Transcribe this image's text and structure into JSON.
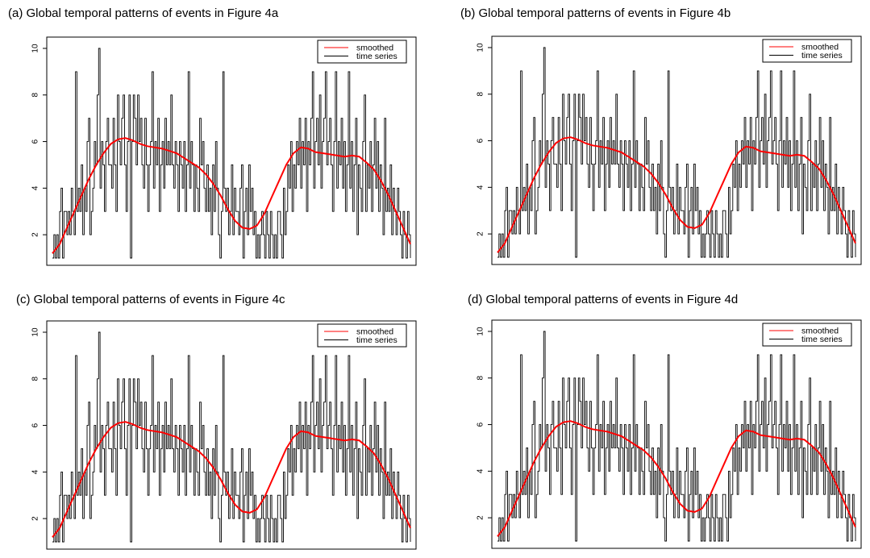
{
  "colors": {
    "smoothed": "#ff0000",
    "series": "#000000",
    "frame": "#000000",
    "background": "#ffffff"
  },
  "chart_data": [
    {
      "type": "line",
      "title": "(a) Global temporal patterns of events in  Figure  4a",
      "ylim": [
        1,
        10
      ],
      "yticks": [
        "2",
        "4",
        "6",
        "8",
        "10"
      ],
      "legend": {
        "position": "top-right",
        "entries": [
          "smoothed",
          "time series"
        ]
      },
      "series": [
        {
          "name": "smoothed",
          "color": "#ff0000"
        },
        {
          "name": "time series",
          "color": "#000000"
        }
      ]
    },
    {
      "type": "line",
      "title": "(b) Global temporal patterns of events in  Figure  4b",
      "ylim": [
        1,
        10
      ],
      "yticks": [
        "2",
        "4",
        "6",
        "8",
        "10"
      ],
      "legend": {
        "position": "top-right",
        "entries": [
          "smoothed",
          "time series"
        ]
      },
      "series": [
        {
          "name": "smoothed",
          "color": "#ff0000"
        },
        {
          "name": "time series",
          "color": "#000000"
        }
      ]
    },
    {
      "type": "line",
      "title": "(c) Global temporal patterns of events in  Figure  4c",
      "ylim": [
        1,
        10
      ],
      "yticks": [
        "2",
        "4",
        "6",
        "8",
        "10"
      ],
      "legend": {
        "position": "top-right",
        "entries": [
          "smoothed",
          "time series"
        ]
      },
      "series": [
        {
          "name": "smoothed",
          "color": "#ff0000"
        },
        {
          "name": "time series",
          "color": "#000000"
        }
      ]
    },
    {
      "type": "line",
      "title": "(d) Global temporal patterns of events in  Figure  4d",
      "ylim": [
        1,
        10
      ],
      "yticks": [
        "2",
        "4",
        "6",
        "8",
        "10"
      ],
      "legend": {
        "position": "top-right",
        "entries": [
          "smoothed",
          "time series"
        ]
      },
      "series": [
        {
          "name": "smoothed",
          "color": "#ff0000"
        },
        {
          "name": "time series",
          "color": "#000000"
        }
      ]
    }
  ],
  "smoothed_curve": [
    1.2,
    1.6,
    2.3,
    3.0,
    3.7,
    4.4,
    5.0,
    5.5,
    5.9,
    6.1,
    6.15,
    6.05,
    5.9,
    5.8,
    5.75,
    5.7,
    5.6,
    5.5,
    5.3,
    5.1,
    4.9,
    4.6,
    4.2,
    3.7,
    3.1,
    2.6,
    2.3,
    2.25,
    2.4,
    2.9,
    3.6,
    4.3,
    5.0,
    5.5,
    5.75,
    5.7,
    5.55,
    5.5,
    5.45,
    5.4,
    5.35,
    5.4,
    5.35,
    5.1,
    4.8,
    4.3,
    3.7,
    3.0,
    2.3,
    1.6
  ],
  "time_series": [
    1,
    2,
    1,
    2,
    1,
    3,
    4,
    1,
    3,
    3,
    2,
    3,
    2,
    4,
    3,
    2,
    9,
    3,
    4,
    3,
    5,
    2,
    4,
    3,
    6,
    7,
    2,
    3,
    4,
    6,
    5,
    8,
    10,
    4,
    6,
    5,
    3,
    6,
    7,
    5,
    5,
    4,
    7,
    5,
    3,
    8,
    6,
    5,
    7,
    8,
    5,
    3,
    6,
    8,
    1,
    6,
    8,
    7,
    5,
    8,
    6,
    7,
    5,
    4,
    7,
    5,
    3,
    5,
    6,
    9,
    4,
    6,
    5,
    7,
    3,
    5,
    6,
    4,
    7,
    5,
    6,
    5,
    8,
    5,
    4,
    6,
    5,
    3,
    6,
    5,
    4,
    6,
    3,
    5,
    9,
    4,
    6,
    5,
    3,
    5,
    4,
    3,
    7,
    5,
    6,
    4,
    3,
    5,
    3,
    4,
    2,
    5,
    3,
    6,
    4,
    2,
    1,
    3,
    9,
    4,
    3,
    4,
    2,
    3,
    5,
    2,
    4,
    3,
    3,
    2,
    4,
    5,
    1,
    3,
    4,
    2,
    5,
    3,
    4,
    2,
    3,
    1,
    2,
    1,
    2,
    3,
    2,
    1,
    3,
    2,
    1,
    3,
    2,
    1,
    2,
    1,
    3,
    3,
    2,
    1,
    4,
    2,
    3,
    5,
    4,
    6,
    3,
    5,
    4,
    6,
    5,
    7,
    4,
    6,
    5,
    7,
    3,
    6,
    5,
    7,
    9,
    4,
    6,
    7,
    5,
    8,
    4,
    6,
    7,
    9,
    5,
    6,
    7,
    5,
    3,
    6,
    9,
    4,
    6,
    5,
    7,
    4,
    6,
    3,
    5,
    9,
    4,
    6,
    3,
    5,
    7,
    2,
    5,
    4,
    3,
    6,
    8,
    3,
    5,
    4,
    6,
    3,
    5,
    7,
    4,
    6,
    3,
    5,
    4,
    2,
    7,
    3,
    4,
    3,
    5,
    2,
    4,
    3,
    2,
    4,
    3,
    2,
    1,
    3,
    2,
    1,
    3,
    2,
    1
  ]
}
